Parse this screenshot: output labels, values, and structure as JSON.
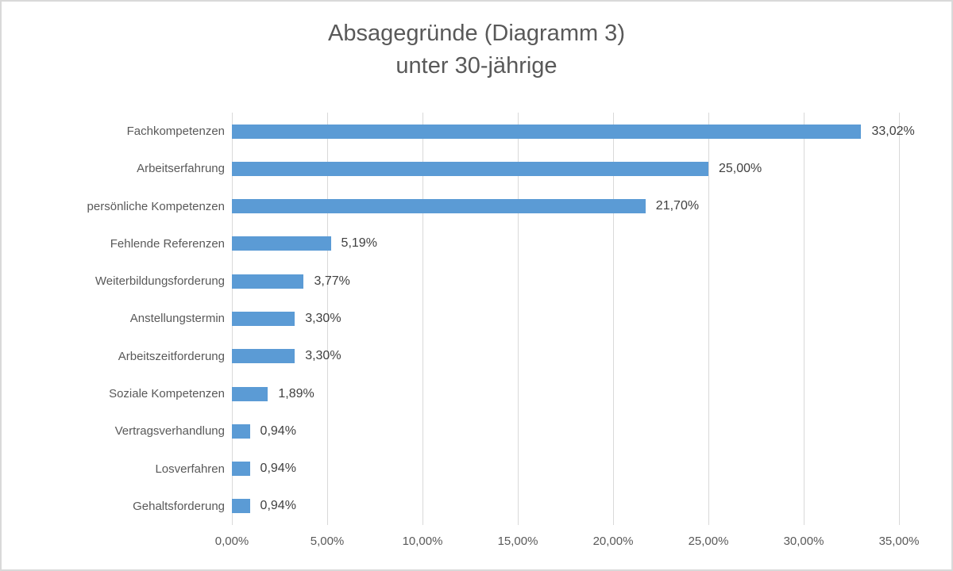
{
  "chart_data": {
    "type": "bar",
    "orientation": "horizontal",
    "title_line1": "Absagegründe (Diagramm 3)",
    "title_line2": "unter 30-jährige",
    "categories": [
      "Fachkompetenzen",
      "Arbeitserfahrung",
      "persönliche Kompetenzen",
      "Fehlende Referenzen",
      "Weiterbildungsforderung",
      "Anstellungstermin",
      "Arbeitszeitforderung",
      "Soziale Kompetenzen",
      "Vertragsverhandlung",
      "Losverfahren",
      "Gehaltsforderung"
    ],
    "values": [
      33.02,
      25.0,
      21.7,
      5.19,
      3.77,
      3.3,
      3.3,
      1.89,
      0.94,
      0.94,
      0.94
    ],
    "value_labels": [
      "33,02%",
      "25,00%",
      "21,70%",
      "5,19%",
      "3,77%",
      "3,30%",
      "3,30%",
      "1,89%",
      "0,94%",
      "0,94%",
      "0,94%"
    ],
    "x_ticks": [
      "0,00%",
      "5,00%",
      "10,00%",
      "15,00%",
      "20,00%",
      "25,00%",
      "30,00%",
      "35,00%"
    ],
    "x_tick_values": [
      0,
      5,
      10,
      15,
      20,
      25,
      30,
      35
    ],
    "xlim": [
      0,
      35
    ],
    "grid": "vertical",
    "legend": "none",
    "bar_color": "#5b9bd5",
    "gridline_color": "#d9d9d9",
    "title_color": "#595959",
    "axis_text_color": "#595959",
    "data_label_color": "#404040"
  }
}
